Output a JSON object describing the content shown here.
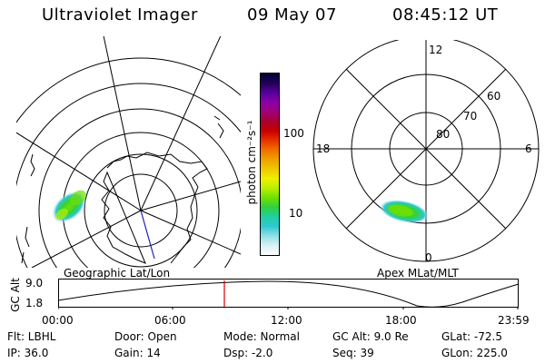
{
  "header": {
    "instrument": "Ultraviolet Imager",
    "date": "09 May 07",
    "time": "08:45:12 UT"
  },
  "colorbar": {
    "unit_label": "photon cm⁻²s⁻¹",
    "ticks": [
      "100",
      "10"
    ],
    "colors": [
      "#000033",
      "#220055",
      "#55009a",
      "#8a00a8",
      "#a0007a",
      "#a80030",
      "#c80000",
      "#e63000",
      "#f07000",
      "#f0a000",
      "#f0c800",
      "#f0f000",
      "#b8f000",
      "#70e000",
      "#30d040",
      "#20d0a0",
      "#30c8d0",
      "#90e0e8",
      "#d8f0f4",
      "#ffffff"
    ]
  },
  "left_map": {
    "label": "Geographic Lat/Lon"
  },
  "right_map": {
    "label": "Apex MLat/MLT",
    "lat_labels": [
      "80",
      "70",
      "60"
    ],
    "mlt_labels": {
      "top": "12",
      "left": "18",
      "right": "6",
      "bottom": "0"
    }
  },
  "altitude_plot": {
    "axis_label": "GC Alt",
    "y_ticks": [
      "9.0",
      "1.8"
    ],
    "x_ticks": [
      "00:00",
      "06:00",
      "12:00",
      "18:00",
      "23:59"
    ],
    "marker_color": "#e00000"
  },
  "info": {
    "flt": "Flt: LBHL",
    "ip": "IP: 36.0",
    "door": "Door: Open",
    "gain": "Gain: 14",
    "mode": "Mode: Normal",
    "dsp": "Dsp:   -2.0",
    "gc_alt": "GC Alt: 9.0 Re",
    "seq": "Seq: 39",
    "glat": "GLat: -72.5",
    "glon": "GLon: 225.0"
  }
}
